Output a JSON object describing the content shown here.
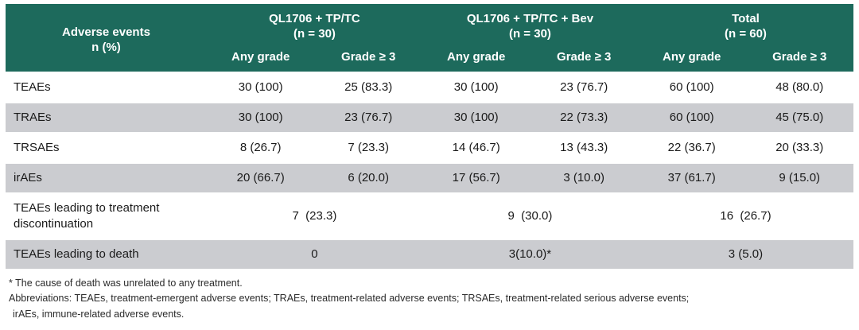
{
  "colors": {
    "header_bg": "#1d6a5c",
    "header_text": "#ffffff",
    "stripe_bg": "#cbccd0",
    "body_text": "#1a1a1a",
    "footnote_text": "#2b2b2b"
  },
  "table": {
    "corner_header": {
      "line1": "Adverse events",
      "line2": "n (%)"
    },
    "groups": [
      {
        "name": "QL1706 + TP/TC",
        "n": "(n = 30)"
      },
      {
        "name": "QL1706 + TP/TC + Bev",
        "n": "(n = 30)"
      },
      {
        "name": "Total",
        "n": "(n = 60)"
      }
    ],
    "subheaders": [
      "Any grade",
      "Grade ≥ 3"
    ],
    "rows": [
      {
        "label": "TEAEs",
        "values": [
          "30 (100)",
          "25 (83.3)",
          "30 (100)",
          "23 (76.7)",
          "60 (100)",
          "48 (80.0)"
        ]
      },
      {
        "label": "TRAEs",
        "values": [
          "30 (100)",
          "23 (76.7)",
          "30 (100)",
          "22 (73.3)",
          "60 (100)",
          "45 (75.0)"
        ]
      },
      {
        "label": "TRSAEs",
        "values": [
          "8 (26.7)",
          "7 (23.3)",
          "14 (46.7)",
          "13 (43.3)",
          "22 (36.7)",
          "20 (33.3)"
        ]
      },
      {
        "label": "irAEs",
        "values": [
          "20 (66.7)",
          "6 (20.0)",
          "17 (56.7)",
          "3 (10.0)",
          "37 (61.7)",
          "9 (15.0)"
        ]
      }
    ],
    "merged_rows": [
      {
        "label": "TEAEs leading to treatment discontinuation",
        "values": [
          "7  (23.3)",
          "9  (30.0)",
          "16  (26.7)"
        ]
      },
      {
        "label": "TEAEs leading to death",
        "values": [
          "0",
          "3(10.0)*",
          "3 (5.0)"
        ]
      }
    ]
  },
  "footnotes": [
    "* The cause of death was unrelated to any treatment.",
    "Abbreviations: TEAEs, treatment-emergent adverse events; TRAEs, treatment-related adverse events; TRSAEs, treatment-related serious adverse events;",
    "irAEs, immune-related adverse events."
  ]
}
